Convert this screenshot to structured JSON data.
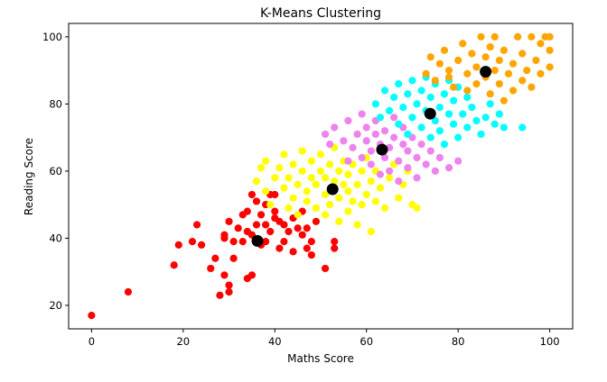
{
  "chart_data": {
    "type": "scatter",
    "title": "K-Means Clustering",
    "xlabel": "Maths Score",
    "ylabel": "Reading Score",
    "xlim": [
      -5,
      105
    ],
    "ylim": [
      13,
      104
    ],
    "xticks": [
      "0",
      "20",
      "40",
      "60",
      "80",
      "100"
    ],
    "yticks": [
      "20",
      "40",
      "60",
      "80",
      "100"
    ],
    "grid": false,
    "legend": "none",
    "clusters": [
      {
        "color": "#ff0000",
        "points": [
          [
            0,
            17
          ],
          [
            8,
            24
          ],
          [
            18,
            32
          ],
          [
            19,
            38
          ],
          [
            22,
            39
          ],
          [
            23,
            44
          ],
          [
            24,
            38
          ],
          [
            26,
            31
          ],
          [
            27,
            34
          ],
          [
            28,
            23
          ],
          [
            29,
            29
          ],
          [
            29,
            40
          ],
          [
            29,
            41
          ],
          [
            30,
            24
          ],
          [
            30,
            26
          ],
          [
            30,
            45
          ],
          [
            31,
            34
          ],
          [
            31,
            39
          ],
          [
            32,
            43
          ],
          [
            33,
            39
          ],
          [
            33,
            47
          ],
          [
            34,
            28
          ],
          [
            34,
            42
          ],
          [
            34,
            48
          ],
          [
            35,
            29
          ],
          [
            35,
            41
          ],
          [
            35,
            53
          ],
          [
            36,
            44
          ],
          [
            36,
            51
          ],
          [
            37,
            38
          ],
          [
            37,
            47
          ],
          [
            38,
            39
          ],
          [
            38,
            44
          ],
          [
            38,
            50
          ],
          [
            39,
            42
          ],
          [
            39,
            53
          ],
          [
            40,
            46
          ],
          [
            40,
            48
          ],
          [
            40,
            53
          ],
          [
            41,
            37
          ],
          [
            41,
            45
          ],
          [
            42,
            39
          ],
          [
            42,
            44
          ],
          [
            43,
            42
          ],
          [
            44,
            36
          ],
          [
            44,
            46
          ],
          [
            45,
            43
          ],
          [
            46,
            41
          ],
          [
            46,
            48
          ],
          [
            47,
            37
          ],
          [
            47,
            43
          ],
          [
            48,
            35
          ],
          [
            48,
            39
          ],
          [
            49,
            45
          ],
          [
            51,
            31
          ],
          [
            53,
            37
          ],
          [
            53,
            39
          ]
        ]
      },
      {
        "color": "#ffff00",
        "points": [
          [
            36,
            57
          ],
          [
            37,
            61
          ],
          [
            38,
            54
          ],
          [
            38,
            63
          ],
          [
            39,
            50
          ],
          [
            40,
            58
          ],
          [
            41,
            61
          ],
          [
            42,
            55
          ],
          [
            42,
            65
          ],
          [
            43,
            49
          ],
          [
            43,
            58
          ],
          [
            44,
            52
          ],
          [
            44,
            62
          ],
          [
            45,
            47
          ],
          [
            45,
            56
          ],
          [
            46,
            60
          ],
          [
            46,
            66
          ],
          [
            47,
            51
          ],
          [
            47,
            54
          ],
          [
            48,
            58
          ],
          [
            48,
            63
          ],
          [
            49,
            49
          ],
          [
            49,
            56
          ],
          [
            50,
            60
          ],
          [
            50,
            65
          ],
          [
            51,
            47
          ],
          [
            51,
            53
          ],
          [
            51,
            58
          ],
          [
            52,
            62
          ],
          [
            52,
            50
          ],
          [
            53,
            57
          ],
          [
            53,
            67
          ],
          [
            54,
            45
          ],
          [
            54,
            52
          ],
          [
            54,
            60
          ],
          [
            55,
            56
          ],
          [
            55,
            63
          ],
          [
            56,
            48
          ],
          [
            56,
            54
          ],
          [
            56,
            59
          ],
          [
            57,
            51
          ],
          [
            57,
            62
          ],
          [
            58,
            44
          ],
          [
            58,
            56
          ],
          [
            59,
            50
          ],
          [
            59,
            60
          ],
          [
            60,
            53
          ],
          [
            60,
            64
          ],
          [
            61,
            42
          ],
          [
            61,
            57
          ],
          [
            62,
            51
          ],
          [
            62,
            60
          ],
          [
            63,
            55
          ],
          [
            64,
            49
          ],
          [
            65,
            58
          ],
          [
            66,
            62
          ],
          [
            67,
            52
          ],
          [
            68,
            56
          ],
          [
            69,
            60
          ],
          [
            70,
            50
          ],
          [
            71,
            49
          ]
        ]
      },
      {
        "color": "#ee82ee",
        "points": [
          [
            51,
            71
          ],
          [
            52,
            68
          ],
          [
            53,
            73
          ],
          [
            55,
            69
          ],
          [
            56,
            63
          ],
          [
            56,
            75
          ],
          [
            57,
            67
          ],
          [
            58,
            71
          ],
          [
            59,
            64
          ],
          [
            59,
            77
          ],
          [
            60,
            69
          ],
          [
            60,
            73
          ],
          [
            61,
            62
          ],
          [
            61,
            66
          ],
          [
            62,
            71
          ],
          [
            62,
            75
          ],
          [
            63,
            59
          ],
          [
            63,
            68
          ],
          [
            64,
            64
          ],
          [
            64,
            72
          ],
          [
            65,
            60
          ],
          [
            65,
            67
          ],
          [
            66,
            70
          ],
          [
            66,
            76
          ],
          [
            67,
            57
          ],
          [
            67,
            63
          ],
          [
            68,
            68
          ],
          [
            68,
            73
          ],
          [
            69,
            61
          ],
          [
            69,
            66
          ],
          [
            70,
            70
          ],
          [
            71,
            58
          ],
          [
            71,
            64
          ],
          [
            72,
            68
          ],
          [
            73,
            62
          ],
          [
            74,
            66
          ],
          [
            75,
            60
          ],
          [
            76,
            64
          ],
          [
            78,
            61
          ],
          [
            80,
            63
          ]
        ]
      },
      {
        "color": "#00ffff",
        "points": [
          [
            62,
            80
          ],
          [
            63,
            76
          ],
          [
            64,
            84
          ],
          [
            65,
            78
          ],
          [
            66,
            82
          ],
          [
            67,
            86
          ],
          [
            67,
            74
          ],
          [
            68,
            79
          ],
          [
            69,
            83
          ],
          [
            69,
            71
          ],
          [
            70,
            76
          ],
          [
            70,
            87
          ],
          [
            71,
            80
          ],
          [
            72,
            73
          ],
          [
            72,
            84
          ],
          [
            73,
            78
          ],
          [
            73,
            88
          ],
          [
            74,
            70
          ],
          [
            74,
            82
          ],
          [
            75,
            75
          ],
          [
            75,
            86
          ],
          [
            76,
            79
          ],
          [
            76,
            72
          ],
          [
            77,
            83
          ],
          [
            77,
            68
          ],
          [
            78,
            77
          ],
          [
            78,
            87
          ],
          [
            79,
            74
          ],
          [
            79,
            81
          ],
          [
            80,
            70
          ],
          [
            80,
            85
          ],
          [
            81,
            77
          ],
          [
            82,
            73
          ],
          [
            82,
            82
          ],
          [
            83,
            79
          ],
          [
            84,
            75
          ],
          [
            85,
            71
          ],
          [
            86,
            76
          ],
          [
            87,
            80
          ],
          [
            88,
            74
          ],
          [
            89,
            77
          ],
          [
            90,
            73
          ],
          [
            94,
            73
          ]
        ]
      },
      {
        "color": "#ffa500",
        "points": [
          [
            73,
            89
          ],
          [
            74,
            94
          ],
          [
            75,
            87
          ],
          [
            76,
            92
          ],
          [
            77,
            96
          ],
          [
            78,
            88
          ],
          [
            78,
            90
          ],
          [
            79,
            85
          ],
          [
            80,
            93
          ],
          [
            81,
            98
          ],
          [
            82,
            89
          ],
          [
            82,
            84
          ],
          [
            83,
            95
          ],
          [
            84,
            91
          ],
          [
            84,
            86
          ],
          [
            85,
            100
          ],
          [
            86,
            88
          ],
          [
            86,
            94
          ],
          [
            87,
            83
          ],
          [
            87,
            97
          ],
          [
            88,
            90
          ],
          [
            88,
            100
          ],
          [
            89,
            86
          ],
          [
            89,
            93
          ],
          [
            90,
            81
          ],
          [
            90,
            96
          ],
          [
            91,
            89
          ],
          [
            92,
            92
          ],
          [
            92,
            84
          ],
          [
            93,
            100
          ],
          [
            94,
            87
          ],
          [
            94,
            95
          ],
          [
            95,
            90
          ],
          [
            96,
            100
          ],
          [
            96,
            85
          ],
          [
            97,
            93
          ],
          [
            98,
            89
          ],
          [
            98,
            98
          ],
          [
            99,
            100
          ],
          [
            100,
            96
          ],
          [
            100,
            100
          ],
          [
            100,
            91
          ]
        ]
      }
    ],
    "centroids": {
      "color": "#000000",
      "points": [
        [
          36.2,
          39.2
        ],
        [
          52.6,
          54.6
        ],
        [
          63.4,
          66.4
        ],
        [
          73.9,
          77.1
        ],
        [
          86.0,
          89.6
        ]
      ]
    }
  }
}
